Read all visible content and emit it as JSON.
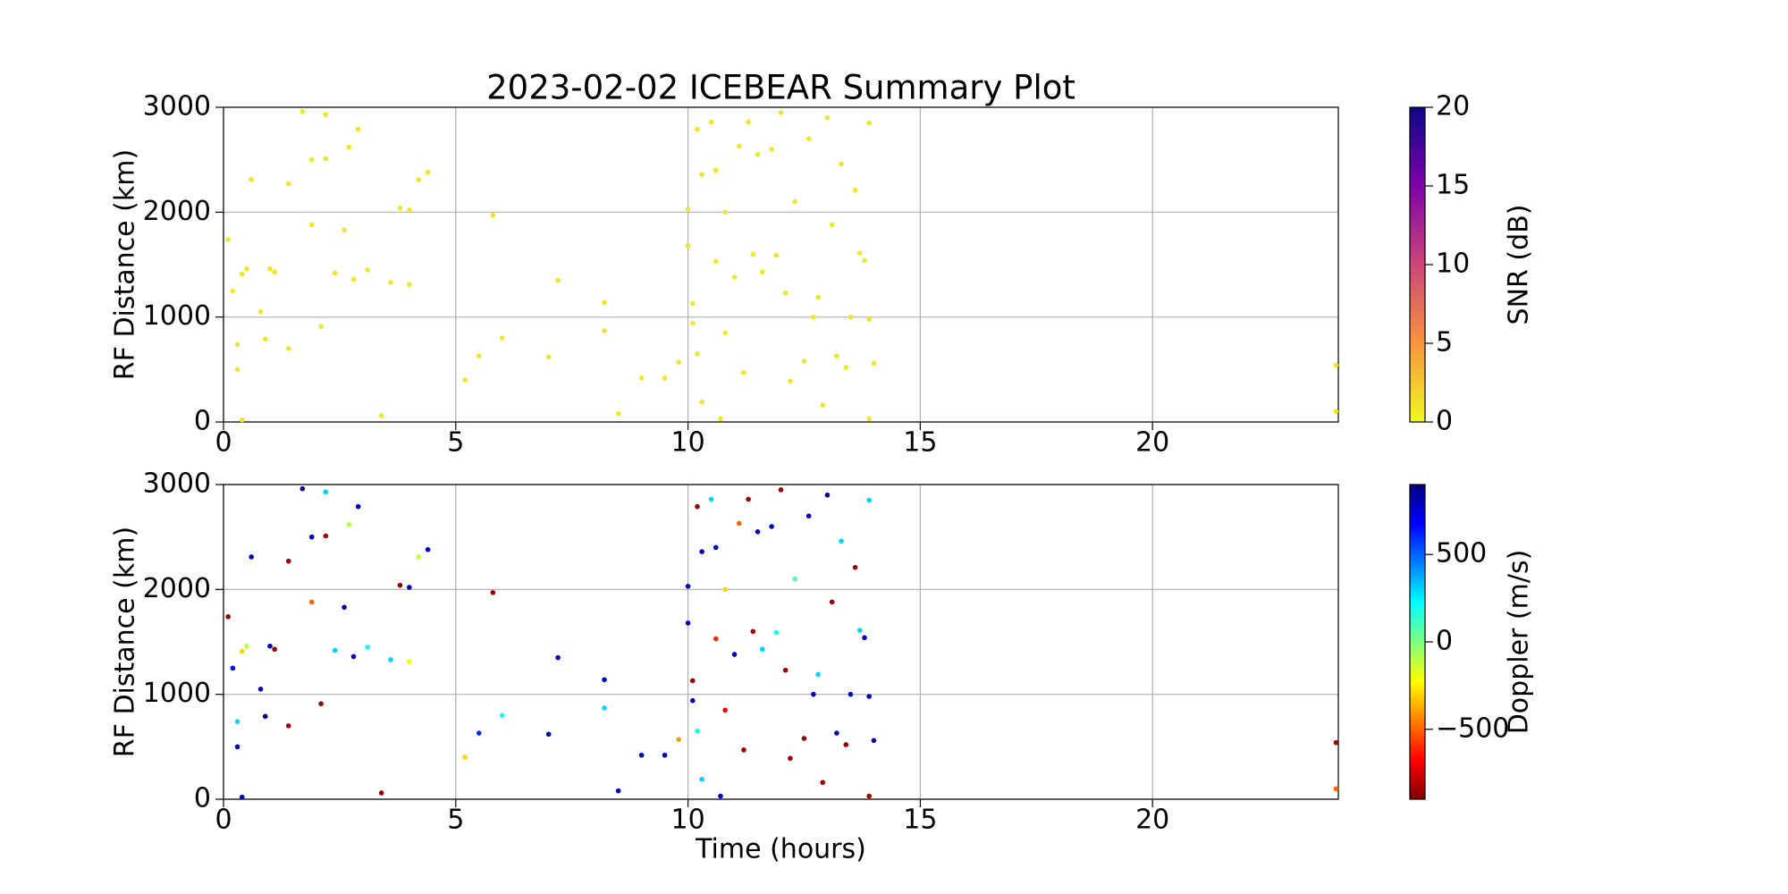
{
  "chart_data": [
    {
      "type": "scatter",
      "title": "2023-02-02 ICEBEAR Summary Plot",
      "ylabel": "RF Distance (km)",
      "x": [
        0.1,
        0.2,
        0.3,
        0.3,
        0.4,
        0.4,
        0.5,
        0.6,
        0.8,
        0.9,
        1.0,
        1.1,
        1.4,
        1.4,
        1.7,
        1.9,
        1.9,
        2.1,
        2.2,
        2.2,
        2.4,
        2.6,
        2.7,
        2.8,
        2.9,
        3.1,
        3.4,
        3.6,
        3.8,
        4.0,
        4.0,
        4.2,
        4.4,
        5.2,
        5.5,
        5.8,
        6.0,
        7.0,
        7.2,
        8.2,
        8.2,
        8.5,
        9.0,
        9.5,
        9.8,
        23.95,
        23.95,
        10.0,
        10.0,
        10.1,
        10.1,
        10.2,
        10.2,
        10.3,
        10.3,
        10.5,
        10.6,
        10.6,
        10.7,
        10.8,
        10.8,
        11.0,
        11.1,
        11.2,
        11.3,
        11.4,
        11.5,
        11.6,
        11.8,
        11.9,
        12.0,
        12.1,
        12.2,
        12.3,
        12.5,
        12.6,
        12.7,
        12.8,
        12.9,
        13.0,
        13.1,
        13.2,
        13.3,
        13.4,
        13.5,
        13.6,
        13.7,
        13.8,
        13.9,
        13.9,
        14.0,
        13.9
      ],
      "y": [
        1740,
        1250,
        740,
        500,
        1410,
        20,
        1460,
        2310,
        1050,
        790,
        1460,
        1430,
        2270,
        700,
        2960,
        2500,
        1880,
        910,
        2930,
        2510,
        1420,
        1830,
        2620,
        1360,
        2790,
        1450,
        60,
        1330,
        2040,
        1310,
        2020,
        2310,
        2380,
        400,
        630,
        1970,
        800,
        620,
        1350,
        1140,
        870,
        80,
        420,
        420,
        570,
        540,
        100,
        2030,
        1680,
        1130,
        940,
        2790,
        650,
        2360,
        190,
        2860,
        2400,
        1530,
        30,
        850,
        2000,
        1380,
        2630,
        470,
        2860,
        1600,
        2550,
        1430,
        2600,
        1590,
        2950,
        1230,
        390,
        2100,
        580,
        2700,
        1000,
        1190,
        160,
        2900,
        1880,
        630,
        2460,
        520,
        1000,
        2210,
        1610,
        1540,
        2850,
        980,
        560,
        30
      ],
      "c": [
        1,
        1,
        1,
        1,
        1,
        1,
        1,
        1,
        1,
        1,
        1,
        1,
        1,
        1,
        1,
        1,
        1,
        1,
        1,
        1,
        1,
        1,
        1,
        1,
        1,
        1,
        1,
        1,
        1,
        1,
        1,
        1,
        1,
        1,
        1,
        1,
        1,
        1,
        1,
        1,
        1,
        1,
        1,
        1,
        1,
        1,
        1,
        1,
        1,
        1,
        1,
        1,
        1,
        1,
        1,
        1,
        1,
        1,
        1,
        1,
        1,
        1,
        1,
        1,
        1,
        1,
        1,
        1,
        1,
        1,
        1,
        1,
        1,
        1,
        1,
        1,
        1,
        1,
        1,
        1,
        1,
        1,
        1,
        1,
        1,
        1,
        1,
        1,
        1,
        1,
        1,
        1
      ],
      "xlim": [
        0,
        24
      ],
      "xticks": [
        0,
        5,
        10,
        15,
        20
      ],
      "ylim": [
        0,
        3000
      ],
      "yticks": [
        0,
        1000,
        2000,
        3000
      ],
      "grid": true,
      "colormap": "plasma_r",
      "clim": [
        0,
        20
      ],
      "cticks": [
        0,
        5,
        10,
        15,
        20
      ],
      "clabel": "SNR (dB)"
    },
    {
      "type": "scatter",
      "xlabel": "Time (hours)",
      "ylabel": "RF Distance (km)",
      "x": [
        0.1,
        0.2,
        0.3,
        0.3,
        0.4,
        0.4,
        0.5,
        0.6,
        0.8,
        0.9,
        1.0,
        1.1,
        1.4,
        1.4,
        1.7,
        1.9,
        1.9,
        2.1,
        2.2,
        2.2,
        2.4,
        2.6,
        2.7,
        2.8,
        2.9,
        3.1,
        3.4,
        3.6,
        3.8,
        4.0,
        4.0,
        4.2,
        4.4,
        5.2,
        5.5,
        5.8,
        6.0,
        7.0,
        7.2,
        8.2,
        8.2,
        8.5,
        9.0,
        9.5,
        9.8,
        23.95,
        23.95,
        10.0,
        10.0,
        10.1,
        10.1,
        10.2,
        10.2,
        10.3,
        10.3,
        10.5,
        10.6,
        10.6,
        10.7,
        10.8,
        10.8,
        11.0,
        11.1,
        11.2,
        11.3,
        11.4,
        11.5,
        11.6,
        11.8,
        11.9,
        12.0,
        12.1,
        12.2,
        12.3,
        12.5,
        12.6,
        12.7,
        12.8,
        12.9,
        13.0,
        13.1,
        13.2,
        13.3,
        13.4,
        13.5,
        13.6,
        13.7,
        13.8,
        13.9,
        13.9,
        14.0,
        13.9
      ],
      "y": [
        1740,
        1250,
        740,
        500,
        1410,
        20,
        1460,
        2310,
        1050,
        790,
        1460,
        1430,
        2270,
        700,
        2960,
        2500,
        1880,
        910,
        2930,
        2510,
        1420,
        1830,
        2620,
        1360,
        2790,
        1450,
        60,
        1330,
        2040,
        1310,
        2020,
        2310,
        2380,
        400,
        630,
        1970,
        800,
        620,
        1350,
        1140,
        870,
        80,
        420,
        420,
        570,
        540,
        100,
        2030,
        1680,
        1130,
        940,
        2790,
        650,
        2360,
        190,
        2860,
        2400,
        1530,
        30,
        850,
        2000,
        1380,
        2630,
        470,
        2860,
        1600,
        2550,
        1430,
        2600,
        1590,
        2950,
        1230,
        390,
        2100,
        580,
        2700,
        1000,
        1190,
        160,
        2900,
        1880,
        630,
        2460,
        520,
        1000,
        2210,
        1610,
        1540,
        2850,
        980,
        560,
        30
      ],
      "c": [
        -850,
        700,
        300,
        800,
        -300,
        800,
        -100,
        800,
        800,
        900,
        800,
        -850,
        -850,
        -850,
        900,
        800,
        -500,
        -850,
        300,
        -850,
        300,
        800,
        -100,
        800,
        800,
        200,
        -850,
        300,
        -850,
        -200,
        800,
        -100,
        800,
        -300,
        600,
        -850,
        200,
        800,
        800,
        800,
        300,
        800,
        800,
        800,
        -400,
        -850,
        -500,
        800,
        800,
        -850,
        800,
        -850,
        200,
        800,
        300,
        300,
        800,
        -600,
        800,
        -700,
        -300,
        800,
        -500,
        -850,
        -850,
        -850,
        800,
        300,
        800,
        200,
        -850,
        -850,
        -850,
        100,
        -850,
        800,
        800,
        300,
        -850,
        800,
        -850,
        800,
        300,
        -850,
        800,
        -850,
        300,
        800,
        300,
        800,
        800,
        -850
      ],
      "xlim": [
        0,
        24
      ],
      "xticks": [
        0,
        5,
        10,
        15,
        20
      ],
      "ylim": [
        0,
        3000
      ],
      "yticks": [
        0,
        1000,
        2000,
        3000
      ],
      "grid": true,
      "colormap": "jet_r",
      "clim": [
        -900,
        900
      ],
      "cticks": [
        {
          "value": -500,
          "label": "−500"
        },
        0,
        500
      ],
      "clabel": "Doppler (m/s)"
    }
  ]
}
